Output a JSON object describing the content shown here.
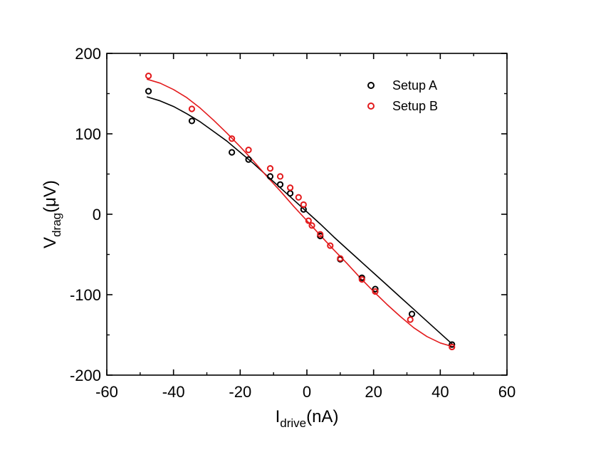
{
  "chart_data": {
    "type": "scatter",
    "title": "",
    "xlabel": {
      "main": "I",
      "sub": "drive",
      "unit": "(nA)"
    },
    "ylabel": {
      "main": "V",
      "sub": "drag",
      "unit": "(μV)"
    },
    "xlim": [
      -60,
      60
    ],
    "ylim": [
      -200,
      200
    ],
    "x_major_ticks": [
      -60,
      -40,
      -20,
      0,
      20,
      40,
      60
    ],
    "y_major_ticks": [
      -200,
      -100,
      0,
      100,
      200
    ],
    "x_tick_labels": [
      "-60",
      "-40",
      "-20",
      "0",
      "20",
      "40",
      "60"
    ],
    "y_tick_labels": [
      "-200",
      "-100",
      "0",
      "100",
      "200"
    ],
    "grid": false,
    "legend_position": "top-right",
    "series": [
      {
        "name": "Setup A",
        "color": "#000000",
        "x": [
          -47.5,
          -34.5,
          -22.5,
          -17.5,
          -11,
          -8,
          -5,
          -1,
          4,
          10,
          16.5,
          20.5,
          31.5,
          43.5
        ],
        "y": [
          153,
          116,
          77,
          68,
          47,
          37,
          26,
          6,
          -27,
          -56,
          -79,
          -93,
          -124,
          -162
        ],
        "fit": {
          "x": [
            -48,
            -44,
            -40,
            -36,
            -32,
            -28,
            -24,
            -20,
            -16,
            -12,
            -8,
            -4,
            0,
            4,
            8,
            12,
            16,
            20,
            24,
            28,
            32,
            36,
            40,
            44
          ],
          "y": [
            146,
            141,
            134,
            125,
            115,
            103,
            91,
            77,
            63,
            48,
            33,
            18,
            3,
            -12,
            -28,
            -43,
            -58,
            -73,
            -88,
            -103,
            -118,
            -133,
            -148,
            -163
          ]
        }
      },
      {
        "name": "Setup B",
        "color": "#e31a1c",
        "x": [
          -47.5,
          -34.5,
          -22.5,
          -17.5,
          -11,
          -8,
          -5,
          -2.5,
          -1,
          0.5,
          1.5,
          4,
          7,
          10,
          16.5,
          20.5,
          31,
          43.5
        ],
        "y": [
          172,
          131,
          94,
          80,
          57,
          47,
          33,
          21,
          12,
          -8,
          -14,
          -25,
          -39,
          -55,
          -81,
          -96,
          -131,
          -165
        ],
        "fit": {
          "x": [
            -48,
            -44,
            -40,
            -36,
            -32,
            -28,
            -24,
            -20,
            -16,
            -12,
            -8,
            -4,
            0,
            4,
            8,
            12,
            16,
            20,
            24,
            28,
            32,
            36,
            40,
            44
          ],
          "y": [
            168,
            163,
            155,
            145,
            132,
            117,
            101,
            84,
            66,
            47,
            29,
            10,
            -8,
            -26,
            -44,
            -61,
            -79,
            -96,
            -112,
            -127,
            -141,
            -152,
            -160,
            -165
          ]
        }
      }
    ]
  }
}
